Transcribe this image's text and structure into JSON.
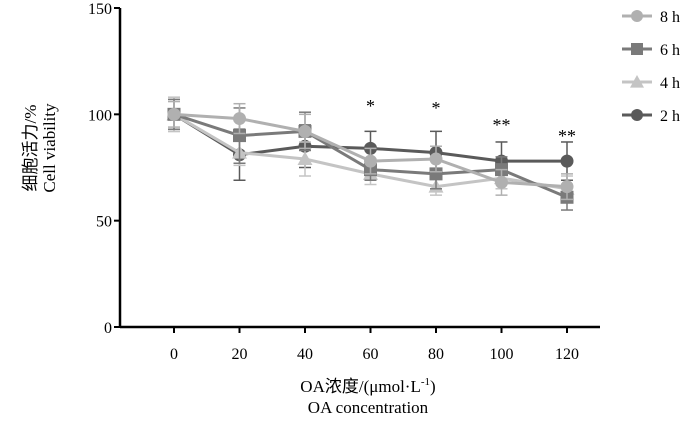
{
  "chart_data": {
    "type": "line",
    "title": "",
    "xlabel_line1": "OA浓度/(μmol·L",
    "xlabel_sup": "-1",
    "xlabel_close": ")",
    "xlabel_line2": "OA concentration",
    "ylabel_line1": "细胞活力/%",
    "ylabel_line2": "Cell viability",
    "x": [
      0,
      20,
      40,
      60,
      80,
      100,
      120
    ],
    "x_tick_labels": [
      "0",
      "20",
      "40",
      "60",
      "80",
      "100",
      "120"
    ],
    "ylim": [
      0,
      150
    ],
    "y_ticks": [
      0,
      50,
      100,
      150
    ],
    "y_tick_labels": [
      "0",
      "50",
      "100",
      "150"
    ],
    "grid": false,
    "legend_position": "top-right",
    "series": [
      {
        "name": "8 h",
        "marker": "circle",
        "color": "#b0b0b0",
        "values": [
          100,
          98,
          92,
          78,
          79,
          68,
          66
        ],
        "errors": [
          6,
          7,
          8,
          6,
          6,
          6,
          6
        ]
      },
      {
        "name": "6 h",
        "marker": "square",
        "color": "#7a7a7a",
        "values": [
          100,
          90,
          92,
          74,
          72,
          74,
          61
        ],
        "errors": [
          7,
          13,
          9,
          5,
          7,
          6,
          6
        ]
      },
      {
        "name": "4 h",
        "marker": "triangle",
        "color": "#c4c4c4",
        "values": [
          100,
          82,
          79,
          72,
          66,
          70,
          65
        ],
        "errors": [
          8,
          6,
          8,
          5,
          4,
          5,
          6
        ]
      },
      {
        "name": "2 h",
        "marker": "circle",
        "color": "#5a5a5a",
        "values": [
          100,
          81,
          85,
          84,
          82,
          78,
          78
        ],
        "errors": [
          8,
          12,
          10,
          8,
          10,
          9,
          9
        ]
      }
    ],
    "annotations": [
      {
        "x": 60,
        "text": "*"
      },
      {
        "x": 80,
        "text": "*"
      },
      {
        "x": 100,
        "text": "**"
      },
      {
        "x": 120,
        "text": "**"
      }
    ]
  }
}
